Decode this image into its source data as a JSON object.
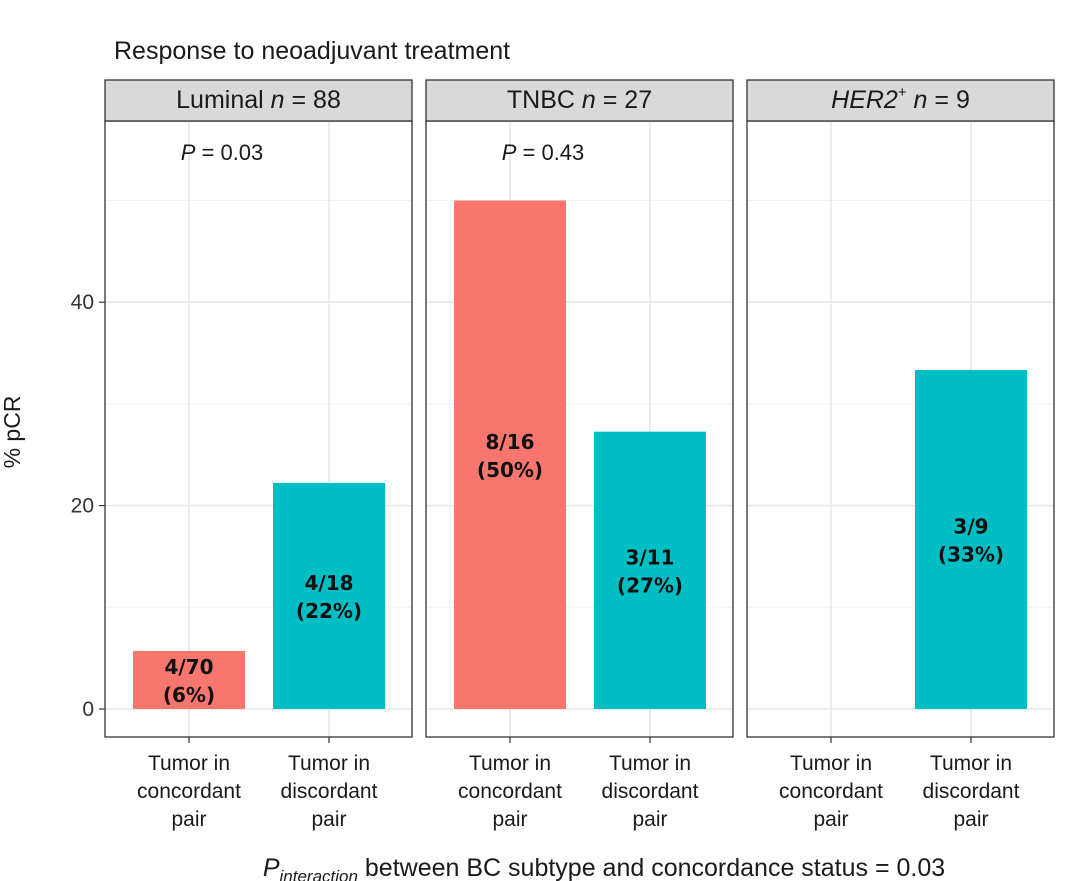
{
  "chart_data": {
    "type": "bar",
    "title": "Response to neoadjuvant treatment",
    "ylabel": "% pCR",
    "ylim": [
      0,
      50
    ],
    "yticks": [
      0,
      20,
      40
    ],
    "grid": true,
    "categories": [
      "Tumor in\nconcordant\npair",
      "Tumor in\ndiscordant\npair"
    ],
    "category_colors": [
      "#F8766D",
      "#00BFC4"
    ],
    "panels": [
      {
        "label_prefix": "Luminal ",
        "n_symbol": "n",
        "n_text": " = 88",
        "superscript": "",
        "p_symbol": "P",
        "p_text": " = 0.03",
        "values": [
          5.71,
          22.22
        ],
        "labels": [
          "4/70\n(6%)",
          "4/18\n(22%)"
        ]
      },
      {
        "label_prefix": "TNBC ",
        "n_symbol": "n",
        "n_text": " = 27",
        "superscript": "",
        "p_symbol": "P",
        "p_text": " = 0.43",
        "values": [
          50.0,
          27.27
        ],
        "labels": [
          "8/16\n(50%)",
          "3/11\n(27%)"
        ]
      },
      {
        "label_italic": "HER2",
        "superscript": "+",
        "n_symbol": "n",
        "n_text": " = 9",
        "p_symbol": "",
        "p_text": "",
        "values": [
          null,
          33.33
        ],
        "labels": [
          "",
          "3/9\n(33%)"
        ]
      }
    ],
    "footer": {
      "symbol": "P",
      "subscript": "interaction",
      "text": " between BC subtype and concordance status = 0.03"
    }
  }
}
